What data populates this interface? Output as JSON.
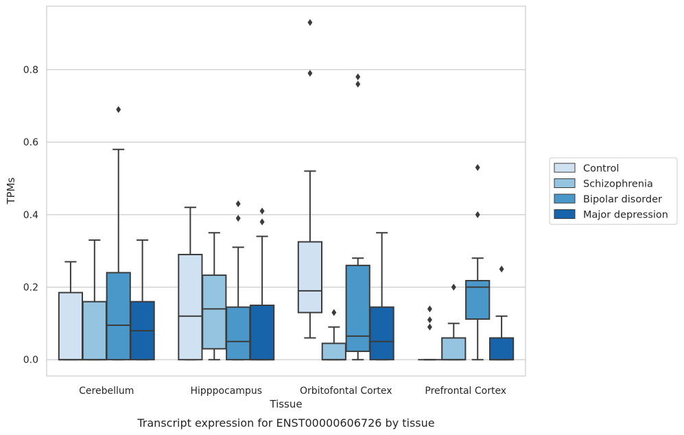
{
  "chart_data": {
    "type": "box",
    "title": "",
    "caption": "Transcript expression for ENST00000606726 by tissue",
    "xlabel": "Tissue",
    "ylabel": "TPMs",
    "ylim": [
      -0.045,
      0.975
    ],
    "yticks": [
      0.0,
      0.2,
      0.4,
      0.6,
      0.8
    ],
    "ytick_labels": [
      "0.0",
      "0.2",
      "0.4",
      "0.6",
      "0.8"
    ],
    "grid": "horizontal",
    "legend_position": "right",
    "categories": [
      "Cerebellum",
      "Hipppocampus",
      "Orbitofontal Cortex",
      "Prefrontal Cortex"
    ],
    "series": [
      {
        "name": "Control",
        "color": "#d0e1f2",
        "boxes": [
          {
            "whislo": 0.0,
            "q1": 0.0,
            "med": 0.0,
            "q3": 0.185,
            "whishi": 0.27,
            "fliers": []
          },
          {
            "whislo": 0.0,
            "q1": 0.0,
            "med": 0.12,
            "q3": 0.29,
            "whishi": 0.42,
            "fliers": []
          },
          {
            "whislo": 0.06,
            "q1": 0.13,
            "med": 0.19,
            "q3": 0.325,
            "whishi": 0.52,
            "fliers": [
              0.79,
              0.93
            ]
          },
          {
            "whislo": 0.0,
            "q1": 0.0,
            "med": 0.0,
            "q3": 0.0,
            "whishi": 0.0,
            "fliers": [
              0.09,
              0.11,
              0.14
            ]
          }
        ]
      },
      {
        "name": "Schizophrenia",
        "color": "#94c4df",
        "boxes": [
          {
            "whislo": 0.0,
            "q1": 0.0,
            "med": 0.0,
            "q3": 0.16,
            "whishi": 0.33,
            "fliers": []
          },
          {
            "whislo": 0.0,
            "q1": 0.03,
            "med": 0.14,
            "q3": 0.233,
            "whishi": 0.35,
            "fliers": []
          },
          {
            "whislo": 0.0,
            "q1": 0.0,
            "med": 0.0,
            "q3": 0.045,
            "whishi": 0.09,
            "fliers": [
              0.13
            ]
          },
          {
            "whislo": 0.0,
            "q1": 0.0,
            "med": 0.0,
            "q3": 0.06,
            "whishi": 0.1,
            "fliers": [
              0.2
            ]
          }
        ]
      },
      {
        "name": "Bipolar disorder",
        "color": "#4a98c9",
        "boxes": [
          {
            "whislo": 0.0,
            "q1": 0.0,
            "med": 0.095,
            "q3": 0.24,
            "whishi": 0.58,
            "fliers": [
              0.69
            ]
          },
          {
            "whislo": 0.0,
            "q1": 0.0,
            "med": 0.05,
            "q3": 0.145,
            "whishi": 0.31,
            "fliers": [
              0.39,
              0.43
            ]
          },
          {
            "whislo": 0.0,
            "q1": 0.023,
            "med": 0.065,
            "q3": 0.26,
            "whishi": 0.28,
            "fliers": [
              0.76,
              0.78
            ]
          },
          {
            "whislo": 0.0,
            "q1": 0.112,
            "med": 0.2,
            "q3": 0.218,
            "whishi": 0.28,
            "fliers": [
              0.4,
              0.53
            ]
          }
        ]
      },
      {
        "name": "Major depression",
        "color": "#1764ab",
        "boxes": [
          {
            "whislo": 0.0,
            "q1": 0.0,
            "med": 0.08,
            "q3": 0.16,
            "whishi": 0.33,
            "fliers": []
          },
          {
            "whislo": 0.0,
            "q1": 0.0,
            "med": 0.0,
            "q3": 0.15,
            "whishi": 0.34,
            "fliers": [
              0.38,
              0.41
            ]
          },
          {
            "whislo": 0.0,
            "q1": 0.0,
            "med": 0.05,
            "q3": 0.145,
            "whishi": 0.35,
            "fliers": []
          },
          {
            "whislo": 0.0,
            "q1": 0.0,
            "med": 0.0,
            "q3": 0.06,
            "whishi": 0.12,
            "fliers": [
              0.25
            ]
          }
        ]
      }
    ]
  }
}
